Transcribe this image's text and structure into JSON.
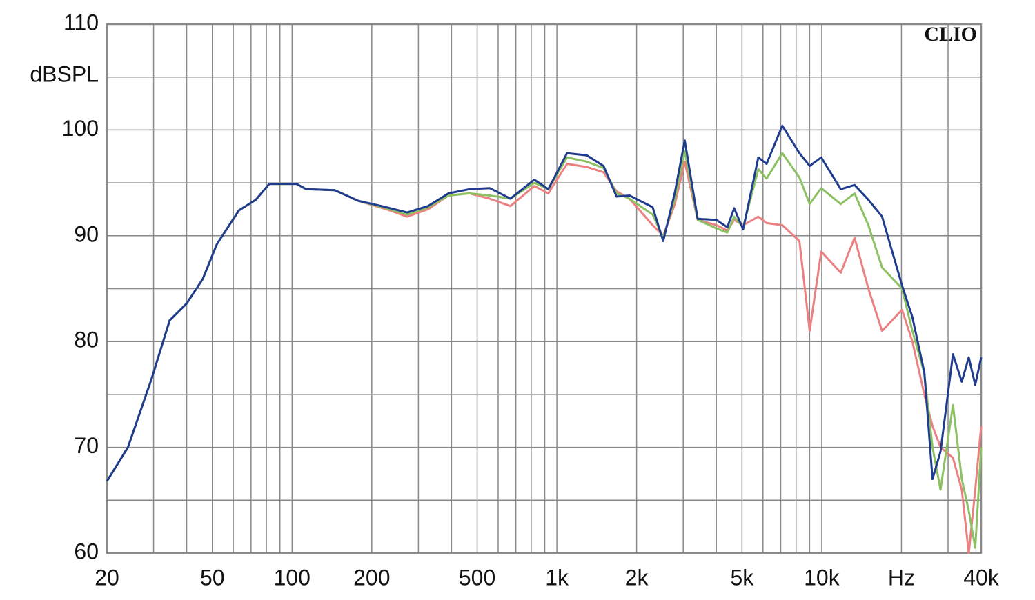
{
  "chart_data": {
    "type": "line",
    "log_x": true,
    "grid": true,
    "y_label": "dBSPL",
    "watermark": "CLIO",
    "xlim": [
      20,
      40000
    ],
    "ylim": [
      60,
      110
    ],
    "xticks": [
      20,
      50,
      100,
      200,
      500,
      {
        "value": 1000,
        "label": "1k"
      },
      {
        "value": 2000,
        "label": "2k"
      },
      {
        "value": 5000,
        "label": "5k"
      },
      {
        "value": 10000,
        "label": "10k"
      },
      {
        "value": 20000,
        "label": "Hz"
      },
      {
        "value": 40000,
        "label": "40k"
      }
    ],
    "xgrid": [
      30,
      40,
      60,
      70,
      80,
      90,
      300,
      400,
      600,
      700,
      800,
      900,
      3000,
      4000,
      6000,
      7000,
      8000,
      9000,
      30000
    ],
    "yticks": [
      60,
      70,
      80,
      90,
      100,
      110
    ],
    "ygrid": [
      65,
      75,
      85,
      95,
      105
    ],
    "x": [
      20,
      24,
      29.5,
      34.5,
      40,
      46,
      52,
      63,
      73,
      82,
      104,
      113,
      145,
      178,
      227,
      272,
      326,
      390,
      467,
      558,
      668,
      822,
      928,
      1092,
      1296,
      1500,
      1680,
      1880,
      2300,
      2520,
      2790,
      3040,
      3400,
      4000,
      4400,
      4670,
      5050,
      5760,
      6190,
      7100,
      8240,
      9000,
      9960,
      11800,
      13300,
      15000,
      16900,
      20100,
      22000,
      24400,
      26200,
      28100,
      31300,
      33800,
      35900,
      38000,
      40000
    ],
    "series": [
      {
        "color": "#ec8080",
        "values": [
          66.8,
          70,
          76.5,
          82,
          83.6,
          85.9,
          89.2,
          92.4,
          93.4,
          94.9,
          94.9,
          94.4,
          94.3,
          93.3,
          92.5,
          91.8,
          92.5,
          93.8,
          94,
          93.5,
          92.8,
          94.7,
          94,
          96.8,
          96.5,
          96,
          94.2,
          93.5,
          91,
          90,
          93,
          97,
          91.5,
          91,
          90.5,
          91.5,
          91,
          91.8,
          91.2,
          91,
          89.5,
          81,
          88.5,
          86.5,
          89.8,
          85,
          81,
          83,
          80,
          75,
          72,
          70,
          69,
          66,
          60,
          66,
          72
        ]
      },
      {
        "color": "#8cc163",
        "values": [
          66.8,
          70,
          76.5,
          82,
          83.6,
          85.9,
          89.2,
          92.4,
          93.4,
          94.9,
          94.9,
          94.4,
          94.3,
          93.3,
          92.6,
          92.0,
          92.7,
          93.8,
          94,
          93.8,
          93.5,
          95,
          94.4,
          97.4,
          97,
          96.4,
          94,
          93.5,
          92,
          89.8,
          93.5,
          98,
          91.5,
          90.7,
          90.3,
          91.8,
          90.8,
          96.3,
          95.4,
          97.8,
          95.5,
          93,
          94.5,
          93,
          94,
          91,
          87,
          85,
          81,
          77,
          70,
          66,
          74,
          67,
          64,
          60.5,
          70
        ]
      },
      {
        "color": "#1f3c8f",
        "values": [
          66.8,
          70,
          76.5,
          82,
          83.6,
          85.9,
          89.2,
          92.4,
          93.4,
          94.9,
          94.9,
          94.4,
          94.3,
          93.3,
          92.7,
          92.2,
          92.8,
          94,
          94.4,
          94.5,
          93.5,
          95.3,
          94.4,
          97.8,
          97.6,
          96.6,
          93.7,
          93.8,
          92.7,
          89.5,
          94.1,
          99,
          91.6,
          91.5,
          90.8,
          92.6,
          90.6,
          97.4,
          96.8,
          100.4,
          97.8,
          96.6,
          97.4,
          94.4,
          94.8,
          93.4,
          91.8,
          85.3,
          82.3,
          77.1,
          67,
          69.6,
          78.8,
          76.2,
          78.5,
          75.9,
          78.5
        ]
      }
    ]
  }
}
